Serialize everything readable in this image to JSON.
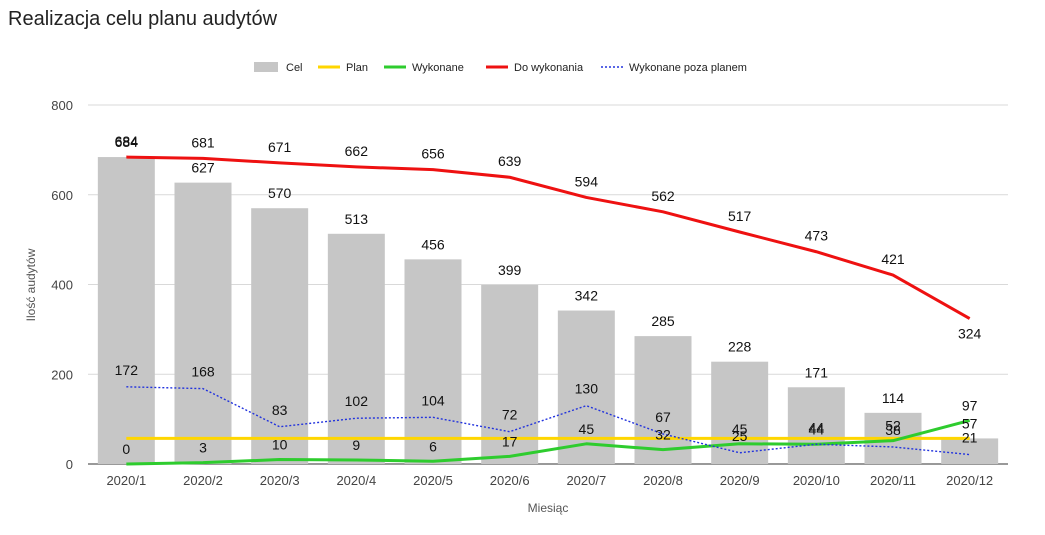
{
  "chart_data": {
    "type": "bar",
    "title": "Realizacja celu planu audytów",
    "xlabel": "Miesiąc",
    "ylabel": "Ilość audytów",
    "ylim": [
      0,
      800
    ],
    "yticks": [
      0,
      200,
      400,
      600,
      800
    ],
    "grid": true,
    "legend_position": "top",
    "categories": [
      "2020/1",
      "2020/2",
      "2020/3",
      "2020/4",
      "2020/5",
      "2020/6",
      "2020/7",
      "2020/8",
      "2020/9",
      "2020/10",
      "2020/11",
      "2020/12"
    ],
    "series": [
      {
        "name": "Cel",
        "type": "bar",
        "color": "#c6c6c6",
        "values": [
          684,
          627,
          570,
          513,
          456,
          399,
          342,
          285,
          228,
          171,
          114,
          57
        ]
      },
      {
        "name": "Plan",
        "type": "line",
        "color": "#ffd600",
        "values": [
          57,
          57,
          57,
          57,
          57,
          57,
          57,
          57,
          57,
          57,
          57,
          57
        ]
      },
      {
        "name": "Wykonane",
        "type": "line",
        "color": "#2ecc2e",
        "values": [
          0,
          3,
          10,
          9,
          6,
          17,
          45,
          32,
          45,
          44,
          52,
          97
        ]
      },
      {
        "name": "Do wykonania",
        "type": "line",
        "color": "#ee1111",
        "values": [
          684,
          681,
          671,
          662,
          656,
          639,
          594,
          562,
          517,
          473,
          421,
          324
        ]
      },
      {
        "name": "Wykonane poza planem",
        "type": "line",
        "dashed": true,
        "color": "#2233dd",
        "values": [
          172,
          168,
          83,
          102,
          104,
          72,
          130,
          67,
          25,
          44,
          38,
          21
        ]
      }
    ]
  }
}
